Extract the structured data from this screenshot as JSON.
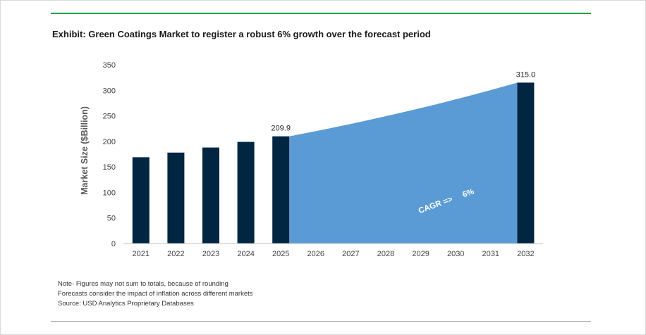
{
  "chart_data": {
    "type": "bar",
    "title": "Exhibit: Green Coatings Market to register a robust 6% growth over the forecast period",
    "ylabel": "Market Size ($Billion)",
    "xlabel": "",
    "ylim": [
      0,
      350
    ],
    "yticks": [
      0,
      50,
      100,
      150,
      200,
      250,
      300,
      350
    ],
    "categories": [
      "2021",
      "2022",
      "2023",
      "2024",
      "2025",
      "2026",
      "2027",
      "2028",
      "2029",
      "2030",
      "2031",
      "2032"
    ],
    "values": [
      169,
      178,
      188,
      199,
      209.9,
      null,
      null,
      null,
      null,
      null,
      null,
      315.0
    ],
    "data_labels": [
      {
        "category": "2025",
        "text": "209.9"
      },
      {
        "category": "2032",
        "text": "315.0"
      }
    ],
    "forecast_area": {
      "from": "2025",
      "to": "2032",
      "start_value": 209.9,
      "end_value": 315.0,
      "growth_rate": 0.06
    },
    "annotation": {
      "text": "CAGR =>     6%"
    },
    "grid": false,
    "legend": "none"
  },
  "notes": [
    "Note- Figures may not sum to totals, because of rounding",
    "Forecasts consider the impact of inflation across different markets",
    "Source: USD Analytics Proprietary Databases"
  ],
  "colors": {
    "bar": "#002642",
    "area": "#5b9bd5",
    "accent_rule": "#1fa04a",
    "axis_text": "#404040",
    "ylabel_text": "#595959"
  }
}
